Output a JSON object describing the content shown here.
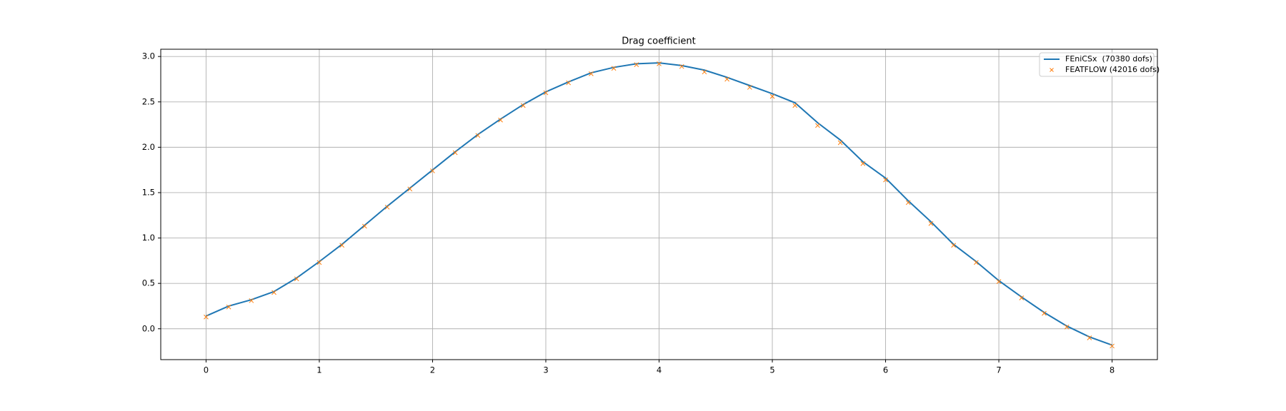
{
  "chart_data": {
    "type": "line",
    "title": "Drag coefficient",
    "x": [
      0,
      0.2,
      0.4,
      0.6,
      0.8,
      1.0,
      1.2,
      1.4,
      1.6,
      1.8,
      2.0,
      2.2,
      2.4,
      2.6,
      2.8,
      3.0,
      3.2,
      3.4,
      3.6,
      3.8,
      4.0,
      4.2,
      4.4,
      4.6,
      4.8,
      5.0,
      5.2,
      5.4,
      5.6,
      5.8,
      6.0,
      6.2,
      6.4,
      6.6,
      6.8,
      7.0,
      7.2,
      7.4,
      7.6,
      7.8,
      8.0
    ],
    "series": [
      {
        "name": "FEniCSx  (70380 dofs)",
        "color": "#1f77b4",
        "style": "line",
        "values": [
          0.14,
          0.25,
          0.32,
          0.41,
          0.56,
          0.74,
          0.93,
          1.14,
          1.35,
          1.55,
          1.75,
          1.95,
          2.14,
          2.31,
          2.47,
          2.61,
          2.72,
          2.82,
          2.88,
          2.92,
          2.93,
          2.9,
          2.85,
          2.77,
          2.68,
          2.59,
          2.49,
          2.27,
          2.08,
          1.84,
          1.66,
          1.41,
          1.18,
          0.93,
          0.74,
          0.53,
          0.35,
          0.18,
          0.03,
          -0.09,
          -0.18
        ]
      },
      {
        "name": "FEATFLOW (42016 dofs)",
        "color": "#ff7f0e",
        "style": "marker",
        "values": [
          0.13,
          0.24,
          0.31,
          0.4,
          0.55,
          0.73,
          0.92,
          1.13,
          1.34,
          1.54,
          1.74,
          1.94,
          2.13,
          2.3,
          2.46,
          2.6,
          2.71,
          2.81,
          2.87,
          2.91,
          2.92,
          2.89,
          2.83,
          2.75,
          2.66,
          2.56,
          2.46,
          2.24,
          2.05,
          1.82,
          1.64,
          1.39,
          1.16,
          0.92,
          0.73,
          0.52,
          0.34,
          0.17,
          0.02,
          -0.1,
          -0.19
        ]
      }
    ],
    "xlim": [
      -0.4,
      8.4
    ],
    "xticks": [
      0,
      1,
      2,
      3,
      4,
      5,
      6,
      7,
      8
    ],
    "ylim": [
      -0.34,
      3.08
    ],
    "yticks": [
      {
        "value": 0,
        "label": "0.0"
      },
      0.5,
      {
        "value": 1,
        "label": "1.0"
      },
      1.5,
      {
        "value": 2,
        "label": "2.0"
      },
      2.5,
      {
        "value": 3,
        "label": "3.0"
      }
    ],
    "grid": true,
    "legend": "upper right"
  }
}
